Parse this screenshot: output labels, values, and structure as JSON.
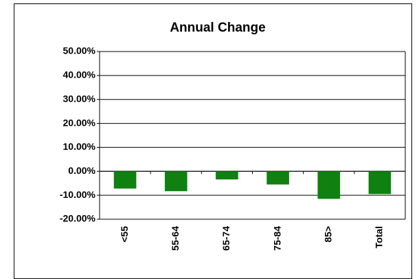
{
  "chart_data": {
    "type": "bar",
    "title": "Annual Change",
    "categories": [
      "<55",
      "55-64",
      "65-74",
      "75-84",
      "85>",
      "Total"
    ],
    "values": [
      -7.2,
      -8.3,
      -3.4,
      -5.5,
      -11.5,
      -9.5
    ],
    "color": "#108010",
    "ylim": [
      -20,
      50
    ],
    "yticks": [
      {
        "value": -20,
        "label": "-20.00%"
      },
      {
        "value": -10,
        "label": "-10.00%"
      },
      {
        "value": 0,
        "label": "0.00%"
      },
      {
        "value": 10,
        "label": "10.00%"
      },
      {
        "value": 20,
        "label": "20.00%"
      },
      {
        "value": 30,
        "label": "30.00%"
      },
      {
        "value": 40,
        "label": "40.00%"
      },
      {
        "value": 50,
        "label": "50.00%"
      }
    ],
    "grid": true
  }
}
